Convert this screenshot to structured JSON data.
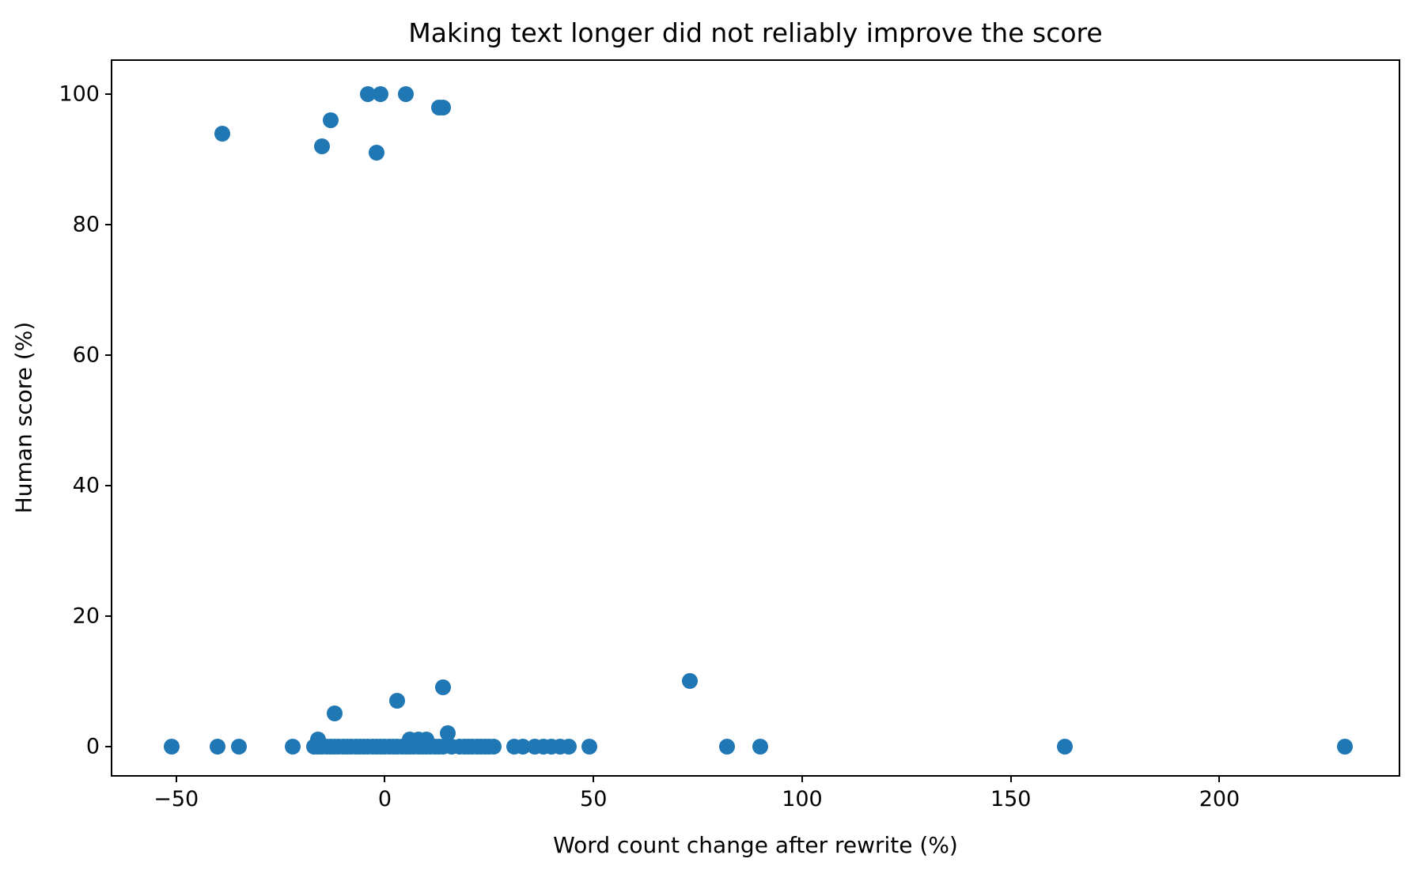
{
  "title": "Making text longer did not reliably improve the score",
  "xlabel": "Word count change after rewrite (%)",
  "ylabel": "Human score (%)",
  "marker_color": "#1f77b4",
  "spine_color": "#000000",
  "chart_data": {
    "type": "scatter",
    "title": "Making text longer did not reliably improve the score",
    "xlabel": "Word count change after rewrite (%)",
    "ylabel": "Human score (%)",
    "xlim": [
      -65.3,
      243.7
    ],
    "ylim": [
      -4.9,
      105.1
    ],
    "x_ticks": [
      -50,
      0,
      50,
      100,
      150,
      200
    ],
    "y_ticks": [
      0,
      20,
      40,
      60,
      80,
      100
    ],
    "grid": false,
    "legend": null,
    "marker_color": "#1f77b4",
    "points": [
      [
        -39,
        94
      ],
      [
        -15,
        92
      ],
      [
        -13,
        96
      ],
      [
        -2,
        91
      ],
      [
        -4,
        100
      ],
      [
        -1,
        100
      ],
      [
        5,
        100
      ],
      [
        13,
        98
      ],
      [
        14,
        98
      ],
      [
        -12,
        5
      ],
      [
        3,
        7
      ],
      [
        14,
        9
      ],
      [
        73,
        10
      ],
      [
        -16,
        1
      ],
      [
        6,
        1
      ],
      [
        8,
        1
      ],
      [
        10,
        1
      ],
      [
        15,
        2
      ],
      [
        -51,
        0
      ],
      [
        -40,
        0
      ],
      [
        -35,
        0
      ],
      [
        -22,
        0
      ],
      [
        -17,
        0
      ],
      [
        -16,
        0
      ],
      [
        -15,
        0
      ],
      [
        -14,
        0
      ],
      [
        -13,
        0
      ],
      [
        -12,
        0
      ],
      [
        -11,
        0
      ],
      [
        -10,
        0
      ],
      [
        -9,
        0
      ],
      [
        -8,
        0
      ],
      [
        -7,
        0
      ],
      [
        -6,
        0
      ],
      [
        -5,
        0
      ],
      [
        -4,
        0
      ],
      [
        -3,
        0
      ],
      [
        -2,
        0
      ],
      [
        -1,
        0
      ],
      [
        0,
        0
      ],
      [
        1,
        0
      ],
      [
        2,
        0
      ],
      [
        3,
        0
      ],
      [
        4,
        0
      ],
      [
        5,
        0
      ],
      [
        6,
        0
      ],
      [
        7,
        0
      ],
      [
        8,
        0
      ],
      [
        9,
        0
      ],
      [
        10,
        0
      ],
      [
        11,
        0
      ],
      [
        12,
        0
      ],
      [
        13,
        0
      ],
      [
        14,
        0
      ],
      [
        16,
        0
      ],
      [
        18,
        0
      ],
      [
        19,
        0
      ],
      [
        20,
        0
      ],
      [
        21,
        0
      ],
      [
        22,
        0
      ],
      [
        23,
        0
      ],
      [
        24,
        0
      ],
      [
        25,
        0
      ],
      [
        26,
        0
      ],
      [
        31,
        0
      ],
      [
        33,
        0
      ],
      [
        36,
        0
      ],
      [
        38,
        0
      ],
      [
        40,
        0
      ],
      [
        42,
        0
      ],
      [
        44,
        0
      ],
      [
        49,
        0
      ],
      [
        82,
        0
      ],
      [
        90,
        0
      ],
      [
        163,
        0
      ],
      [
        230,
        0
      ]
    ]
  }
}
